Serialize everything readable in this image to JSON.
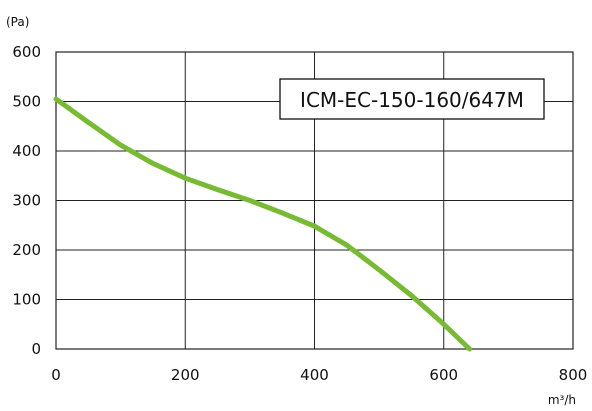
{
  "chart_data": {
    "type": "line",
    "title": "",
    "annotation": "ICM-EC-150-160/647M",
    "ylabel": "(Pa)",
    "xlabel": "m³/h",
    "xlim": [
      0,
      800
    ],
    "ylim": [
      0,
      600
    ],
    "x_ticks": [
      0,
      200,
      400,
      600,
      800
    ],
    "y_ticks": [
      0,
      100,
      200,
      300,
      400,
      500,
      600
    ],
    "grid": true,
    "series": [
      {
        "color": "#77bb33",
        "x": [
          0,
          50,
          100,
          150,
          200,
          250,
          300,
          350,
          400,
          450,
          500,
          550,
          600,
          640
        ],
        "y": [
          505,
          458,
          412,
          375,
          345,
          322,
          300,
          275,
          248,
          210,
          160,
          108,
          50,
          0
        ]
      }
    ]
  }
}
